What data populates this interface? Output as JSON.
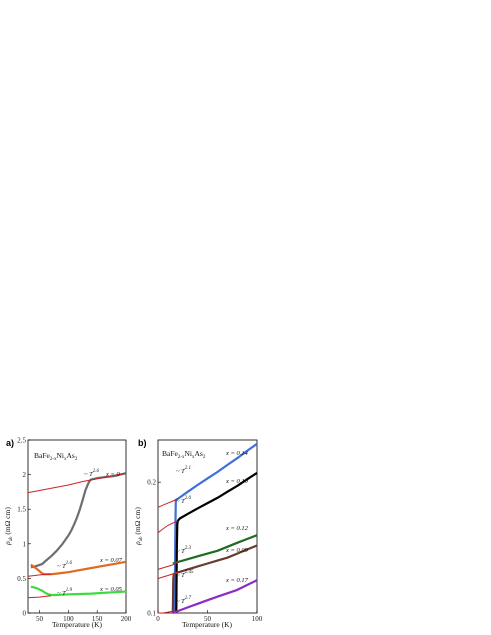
{
  "chart_data": [
    {
      "panel_label": "a)",
      "type": "line",
      "compound": {
        "base": "BaFe",
        "sub1": "2-x",
        "mid": "Ni",
        "sub2": "x",
        "end": "As",
        "sub3": "2"
      },
      "xlabel": "Temperature (K)",
      "ylabel": {
        "main": "ρ",
        "sub": "ab",
        "unit": " (mΩ cm)"
      },
      "xlim": [
        30,
        200
      ],
      "ylim": [
        0,
        2.5
      ],
      "xticks": [
        "50",
        "100",
        "150",
        "200"
      ],
      "yticks": [
        "0",
        "0.5",
        "1",
        "1.5",
        "2",
        "2.5"
      ],
      "grid": false,
      "series": [
        {
          "name": "x = 0",
          "color": "#6e6e6e",
          "x": [
            35,
            45,
            55,
            60,
            70,
            80,
            90,
            100,
            105,
            110,
            115,
            120,
            125,
            130,
            135,
            138,
            140,
            145,
            150,
            160,
            170,
            180,
            190,
            200
          ],
          "y": [
            0.66,
            0.68,
            0.71,
            0.75,
            0.82,
            0.9,
            1.0,
            1.12,
            1.19,
            1.28,
            1.38,
            1.5,
            1.64,
            1.78,
            1.88,
            1.92,
            1.93,
            1.94,
            1.95,
            1.96,
            1.97,
            1.98,
            2.0,
            2.02
          ]
        },
        {
          "name": "x = 0.07",
          "color": "#e06a1f",
          "x": [
            35,
            45,
            55,
            60,
            70,
            80,
            90,
            100,
            120,
            140,
            160,
            180,
            200
          ],
          "y": [
            0.7,
            0.64,
            0.57,
            0.56,
            0.56,
            0.57,
            0.58,
            0.59,
            0.62,
            0.65,
            0.68,
            0.71,
            0.74
          ]
        },
        {
          "name": "x = 0.05",
          "color": "#3cdc3c",
          "x": [
            35,
            45,
            50,
            55,
            60,
            65,
            70,
            80,
            90,
            100,
            120,
            140,
            160,
            180,
            200
          ],
          "y": [
            0.38,
            0.36,
            0.34,
            0.32,
            0.29,
            0.27,
            0.26,
            0.26,
            0.265,
            0.27,
            0.275,
            0.28,
            0.29,
            0.3,
            0.31
          ]
        }
      ],
      "fits": [
        {
          "label": "~ T",
          "exp": "2.6",
          "color": "#cc2222",
          "x": [
            30,
            50,
            75,
            100,
            125,
            150,
            175,
            200
          ],
          "y": [
            1.74,
            1.77,
            1.81,
            1.85,
            1.9,
            1.94,
            1.98,
            2.02
          ]
        },
        {
          "label": "~ T",
          "exp": "1.6",
          "color": "#cc2222",
          "x": [
            30,
            40,
            50,
            60,
            70
          ],
          "y": [
            0.53,
            0.54,
            0.55,
            0.555,
            0.56
          ]
        },
        {
          "label": "~ T",
          "exp": "1.9",
          "color": "#cc2222",
          "x": [
            30,
            40,
            50,
            60,
            70
          ],
          "y": [
            0.22,
            0.225,
            0.23,
            0.24,
            0.25
          ]
        }
      ]
    },
    {
      "panel_label": "b)",
      "type": "line",
      "compound": {
        "base": "BaFe",
        "sub1": "2-x",
        "mid": "Ni",
        "sub2": "x",
        "end": "As",
        "sub3": "2"
      },
      "xlabel": "Temperature (K)",
      "ylabel": {
        "main": "ρ",
        "sub": "ab",
        "unit": " (mΩ cm)"
      },
      "xlim": [
        0,
        100
      ],
      "ylim": [
        0.1,
        0.25
      ],
      "yscale": "log",
      "xticks": [
        "0",
        "50",
        "100"
      ],
      "yticks": [
        "0.1",
        "0.2"
      ],
      "grid": false,
      "series": [
        {
          "name": "x = 0.14",
          "color": "#3f6fd6",
          "x": [
            17,
            17.5,
            18,
            20,
            30,
            40,
            50,
            60,
            70,
            80,
            90,
            100
          ],
          "y": [
            0.1,
            0.15,
            0.182,
            0.183,
            0.19,
            0.197,
            0.204,
            0.211,
            0.219,
            0.227,
            0.236,
            0.245
          ]
        },
        {
          "name": "x = 0.10",
          "color": "#000000",
          "x": [
            18.5,
            19,
            19.5,
            20,
            22,
            30,
            40,
            50,
            60,
            70,
            80,
            90,
            100
          ],
          "y": [
            0.1,
            0.14,
            0.16,
            0.163,
            0.165,
            0.169,
            0.174,
            0.179,
            0.184,
            0.19,
            0.196,
            0.203,
            0.21
          ]
        },
        {
          "name": "x = 0.12",
          "color": "#1f6b1f",
          "x": [
            15,
            20,
            30,
            40,
            50,
            60,
            70,
            80,
            90,
            100
          ],
          "y": [
            0.13,
            0.131,
            0.133,
            0.135,
            0.137,
            0.139,
            0.142,
            0.145,
            0.148,
            0.151
          ]
        },
        {
          "name": "x = 0.09",
          "color": "#6b3a2e",
          "x": [
            15,
            15.5,
            16,
            20,
            30,
            40,
            50,
            60,
            70,
            80,
            90,
            100
          ],
          "y": [
            0.1,
            0.12,
            0.123,
            0.124,
            0.126,
            0.128,
            0.13,
            0.132,
            0.134,
            0.137,
            0.14,
            0.143
          ]
        },
        {
          "name": "x = 0.17",
          "color": "#8a2cc8",
          "x": [
            15,
            20,
            30,
            40,
            50,
            60,
            70,
            80,
            90,
            100
          ],
          "y": [
            0.1,
            0.101,
            0.103,
            0.105,
            0.107,
            0.109,
            0.111,
            0.113,
            0.116,
            0.119
          ]
        }
      ],
      "fits": [
        {
          "label": "~ T",
          "exp": "2.1",
          "color": "#cc2222",
          "x": [
            0,
            5,
            10,
            15,
            20
          ],
          "y": [
            0.175,
            0.177,
            0.179,
            0.181,
            0.183
          ]
        },
        {
          "label": "~ T",
          "exp": "2.0",
          "color": "#cc2222",
          "x": [
            0,
            5,
            10,
            15,
            20
          ],
          "y": [
            0.153,
            0.156,
            0.159,
            0.161,
            0.163
          ]
        },
        {
          "label": "~ T",
          "exp": "2.3",
          "color": "#cc2222",
          "x": [
            0,
            5,
            10,
            15,
            20
          ],
          "y": [
            0.126,
            0.127,
            0.128,
            0.129,
            0.131
          ]
        },
        {
          "label": "~ T",
          "exp": "2.45",
          "color": "#cc2222",
          "x": [
            0,
            5,
            10,
            15,
            20
          ],
          "y": [
            0.12,
            0.121,
            0.122,
            0.123,
            0.124
          ]
        },
        {
          "label": "~ T",
          "exp": "2.7",
          "color": "#cc2222",
          "x": [
            0,
            5,
            10,
            15,
            20
          ],
          "y": [
            0.1,
            0.1,
            0.1005,
            0.101,
            0.101
          ]
        }
      ]
    }
  ]
}
